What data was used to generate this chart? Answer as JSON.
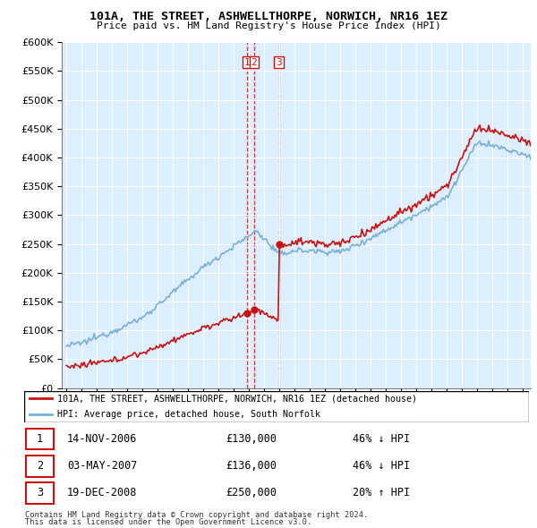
{
  "title": "101A, THE STREET, ASHWELLTHORPE, NORWICH, NR16 1EZ",
  "subtitle": "Price paid vs. HM Land Registry's House Price Index (HPI)",
  "legend_line1": "101A, THE STREET, ASHWELLTHORPE, NORWICH, NR16 1EZ (detached house)",
  "legend_line2": "HPI: Average price, detached house, South Norfolk",
  "footer1": "Contains HM Land Registry data © Crown copyright and database right 2024.",
  "footer2": "This data is licensed under the Open Government Licence v3.0.",
  "sales": [
    {
      "num": 1,
      "date": "14-NOV-2006",
      "price": 130000,
      "hpi_pct": "46% ↓ HPI",
      "x_year": 2006.87
    },
    {
      "num": 2,
      "date": "03-MAY-2007",
      "price": 136000,
      "hpi_pct": "46% ↓ HPI",
      "x_year": 2007.33
    },
    {
      "num": 3,
      "date": "19-DEC-2008",
      "price": 250000,
      "hpi_pct": "20% ↑ HPI",
      "x_year": 2008.96
    }
  ],
  "hpi_color": "#7ab0d4",
  "price_color": "#cc1111",
  "bg_color": "#ddeeff",
  "ylim": [
    0,
    600000
  ],
  "yticks": [
    0,
    50000,
    100000,
    150000,
    200000,
    250000,
    300000,
    350000,
    400000,
    450000,
    500000,
    550000,
    600000
  ],
  "xlim_start": 1994.7,
  "xlim_end": 2025.5
}
